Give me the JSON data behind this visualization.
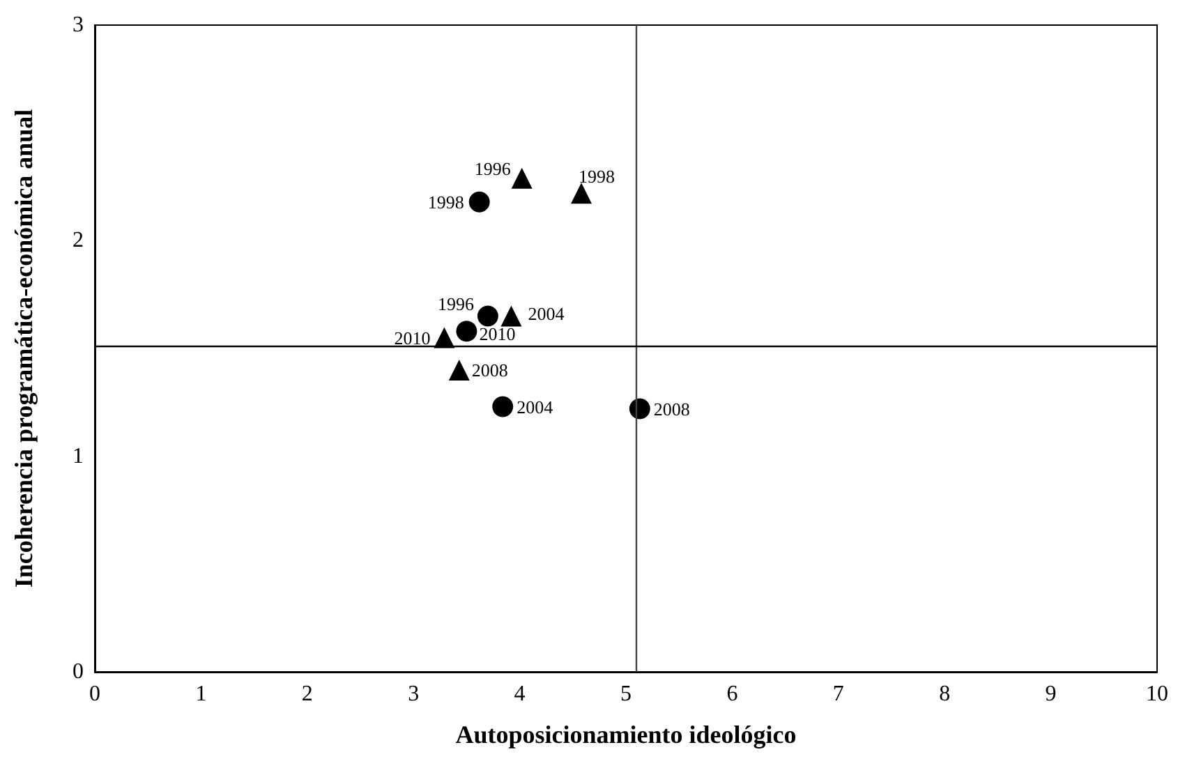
{
  "chart_data": {
    "type": "scatter",
    "xlabel": "Autoposicionamiento ideológico",
    "ylabel": "Incoherencia programática-económica anual",
    "xlim": [
      0,
      10
    ],
    "xticks": [
      0,
      1,
      2,
      3,
      4,
      5,
      6,
      7,
      8,
      9,
      10
    ],
    "ylim": [
      0,
      3
    ],
    "yticks": [
      0,
      1,
      2,
      3
    ],
    "grid": false,
    "series": [
      {
        "color": "#000000",
        "marker": "circle",
        "x": [
          3.62,
          3.7,
          3.5,
          3.84,
          5.13
        ],
        "values": [
          2.18,
          1.65,
          1.58,
          1.23,
          1.22
        ]
      },
      {
        "color": "#000000",
        "marker": "triangle",
        "x": [
          4.02,
          4.58,
          3.92,
          3.29,
          3.43
        ],
        "values": [
          2.29,
          2.22,
          1.65,
          1.55,
          1.4
        ]
      }
    ],
    "annotations": [
      {
        "text": "1998",
        "x": 3.62,
        "y": 2.18
      },
      {
        "text": "1996",
        "x": 3.7,
        "y": 1.65
      },
      {
        "text": "2010",
        "x": 3.5,
        "y": 1.58
      },
      {
        "text": "2004",
        "x": 3.84,
        "y": 1.23
      },
      {
        "text": "2008",
        "x": 5.13,
        "y": 1.22
      },
      {
        "text": "1996",
        "x": 4.02,
        "y": 2.29
      },
      {
        "text": "1998",
        "x": 4.58,
        "y": 2.22
      },
      {
        "text": "2004",
        "x": 3.92,
        "y": 1.65
      },
      {
        "text": "2010",
        "x": 3.29,
        "y": 1.55
      },
      {
        "text": "2008",
        "x": 3.43,
        "y": 1.4
      }
    ],
    "ref_lines": [
      {
        "axis": "x",
        "value": 5.1,
        "color": "#444444"
      },
      {
        "axis": "y",
        "value": 1.51,
        "color": "#000000"
      }
    ]
  }
}
